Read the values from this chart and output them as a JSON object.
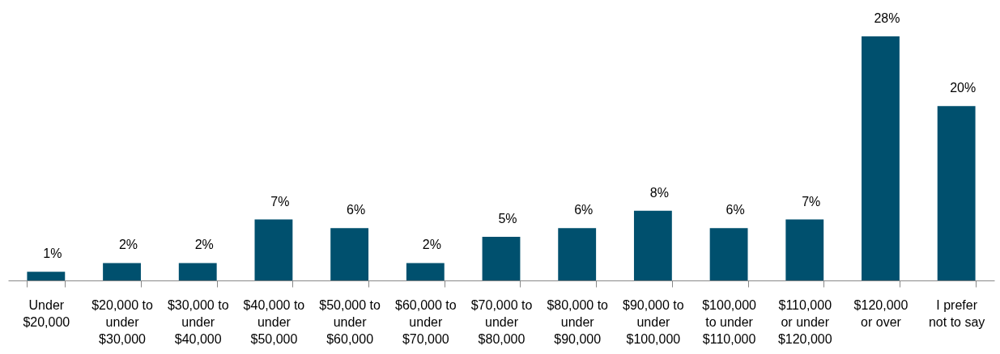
{
  "chart_data": {
    "type": "bar",
    "categories": [
      "Under $20,000",
      "$20,000 to under $30,000",
      "$30,000 to under $40,000",
      "$40,000 to under $50,000",
      "$50,000 to under $60,000",
      "$60,000 to under $70,000",
      "$70,000 to under $80,000",
      "$80,000 to under $90,000",
      "$90,000 to under $100,000",
      "$100,000 to under $110,000",
      "$110,000 or under $120,000",
      "$120,000 or over",
      "I prefer not to say"
    ],
    "values": [
      1,
      2,
      2,
      7,
      6,
      2,
      5,
      6,
      8,
      6,
      7,
      28,
      20
    ],
    "value_labels": [
      "1%",
      "2%",
      "2%",
      "7%",
      "6%",
      "2%",
      "5%",
      "6%",
      "8%",
      "6%",
      "7%",
      "28%",
      "20%"
    ],
    "color": "#00506e"
  }
}
